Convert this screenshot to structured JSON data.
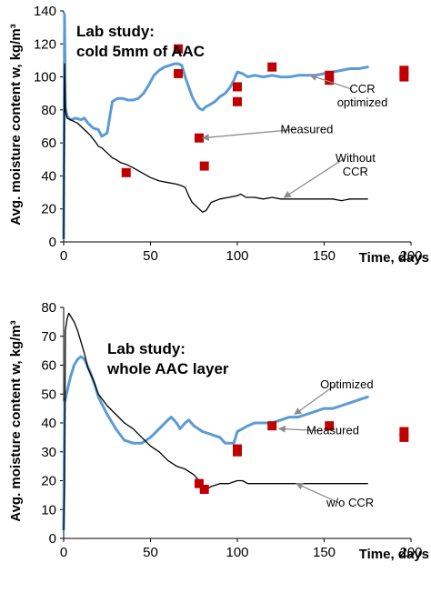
{
  "colors": {
    "optimized": "#5b9bd5",
    "without": "#000000",
    "measured": "#c00000",
    "arrow": "#8c8c8c"
  },
  "chart_data": [
    {
      "type": "line",
      "title_lines": [
        "Lab study:",
        "cold 5mm of AAC"
      ],
      "xlabel": "Time, days",
      "ylabel": "Avg. moisture content w, kg/m³",
      "xlim": [
        0,
        200
      ],
      "ylim": [
        0,
        140
      ],
      "xticks": [
        "0",
        "50",
        "100",
        "150",
        "200"
      ],
      "yticks": [
        "0",
        "20",
        "40",
        "60",
        "80",
        "100",
        "120",
        "140"
      ],
      "grid": false,
      "series": [
        {
          "name": "CCR optimized",
          "kind": "line",
          "x": [
            0,
            0.5,
            1,
            2,
            4,
            7,
            10,
            12,
            14,
            17,
            20,
            22,
            25,
            28,
            31,
            34,
            37,
            40,
            43,
            46,
            49,
            52,
            55,
            58,
            61,
            64,
            66,
            68,
            70,
            72,
            74,
            76,
            78,
            80,
            82,
            84,
            87,
            90,
            93,
            96,
            98,
            100,
            103,
            106,
            110,
            115,
            120,
            125,
            130,
            135,
            140,
            145,
            150,
            155,
            160,
            165,
            170,
            175
          ],
          "y": [
            2,
            138,
            82,
            76,
            74,
            75,
            74,
            75,
            72,
            69,
            68,
            64,
            66,
            85,
            87,
            87,
            86,
            86,
            87,
            90,
            95,
            101,
            104,
            106,
            107,
            108,
            108,
            107,
            100,
            94,
            88,
            84,
            81,
            80,
            82,
            83,
            85,
            88,
            90,
            94,
            98,
            103,
            102,
            100,
            101,
            100,
            101,
            100,
            100,
            101,
            101,
            101,
            102,
            103,
            104,
            105,
            105,
            106
          ]
        },
        {
          "name": "Without CCR",
          "kind": "line",
          "x": [
            0,
            0.5,
            1,
            2,
            4,
            6,
            8,
            10,
            12,
            15,
            18,
            20,
            22,
            24,
            26,
            28,
            30,
            33,
            36,
            40,
            45,
            50,
            55,
            60,
            65,
            68,
            70,
            72,
            74,
            76,
            78,
            80,
            82,
            85,
            90,
            95,
            100,
            102,
            105,
            110,
            115,
            120,
            125,
            130,
            135,
            140,
            145,
            150,
            155,
            160,
            165,
            170,
            175
          ],
          "y": [
            2,
            108,
            80,
            75,
            74,
            73,
            72,
            70,
            68,
            65,
            61,
            58,
            57,
            55,
            53,
            51,
            50,
            48,
            47,
            45,
            42,
            39,
            37,
            36,
            35,
            34,
            33,
            28,
            24,
            22,
            20,
            18,
            19,
            24,
            26,
            27,
            28,
            29,
            27,
            27,
            26,
            27,
            26,
            26,
            26,
            26,
            26,
            26,
            26,
            25,
            26,
            26,
            26
          ]
        },
        {
          "name": "Measured",
          "kind": "points",
          "x": [
            36,
            66,
            66,
            78,
            81,
            100,
            100,
            120,
            153,
            153,
            196,
            196
          ],
          "y": [
            42,
            117,
            102,
            63,
            46,
            94,
            85,
            106,
            101,
            98,
            104,
            100
          ]
        }
      ],
      "annotations": [
        {
          "lines": [
            "CCR",
            "optimized"
          ],
          "target": [
            142,
            101
          ],
          "text_at": [
            172,
            86
          ]
        },
        {
          "lines": [
            "Measured"
          ],
          "target": [
            80,
            63
          ],
          "text_at": [
            140,
            66
          ]
        },
        {
          "lines": [
            "Without",
            "CCR"
          ],
          "target": [
            127,
            27
          ],
          "text_at": [
            168,
            44
          ]
        }
      ]
    },
    {
      "type": "line",
      "title_lines": [
        "Lab study:",
        "whole AAC layer"
      ],
      "xlabel": "Time, days",
      "ylabel": "Avg. moisture content w, kg/m³",
      "xlim": [
        0,
        200
      ],
      "ylim": [
        0,
        80
      ],
      "xticks": [
        "0",
        "50",
        "100",
        "150",
        "200"
      ],
      "yticks": [
        "0",
        "10",
        "20",
        "30",
        "40",
        "50",
        "60",
        "70",
        "80"
      ],
      "grid": false,
      "series": [
        {
          "name": "Optimized",
          "kind": "line",
          "x": [
            0,
            0.5,
            1,
            2,
            4,
            6,
            8,
            10,
            12,
            15,
            18,
            20,
            25,
            30,
            35,
            40,
            45,
            50,
            55,
            60,
            62,
            65,
            67,
            70,
            72,
            75,
            80,
            85,
            90,
            93,
            96,
            98,
            100,
            103,
            106,
            110,
            115,
            120,
            125,
            130,
            135,
            140,
            145,
            150,
            155,
            160,
            165,
            170,
            175
          ],
          "y": [
            3,
            47,
            48,
            51,
            56,
            60,
            62,
            63,
            62,
            58,
            53,
            49,
            43,
            38,
            34,
            33,
            33,
            35,
            38,
            41,
            42,
            40,
            38,
            40,
            41,
            39,
            37,
            36,
            35,
            33,
            33,
            33,
            37,
            38,
            39,
            40,
            40,
            40,
            41,
            42,
            42,
            43,
            44,
            45,
            45,
            46,
            47,
            48,
            49
          ]
        },
        {
          "name": "w/o CCR",
          "kind": "line",
          "x": [
            0,
            0.5,
            1,
            2,
            3,
            4,
            6,
            8,
            10,
            12,
            14,
            17,
            20,
            25,
            30,
            35,
            40,
            45,
            50,
            55,
            60,
            65,
            70,
            75,
            78,
            80,
            82,
            85,
            90,
            95,
            100,
            103,
            106,
            110,
            115,
            120,
            125,
            130,
            135,
            140,
            145,
            150,
            155,
            160,
            165,
            170,
            175
          ],
          "y": [
            3,
            20,
            72,
            76,
            78,
            77,
            75,
            72,
            68,
            64,
            59,
            55,
            50,
            46,
            43,
            40,
            38,
            35,
            32,
            30,
            27,
            25,
            24,
            22,
            20,
            16,
            17,
            18,
            19,
            19,
            20,
            20,
            19,
            19,
            19,
            19,
            19,
            19,
            19,
            19,
            19,
            19,
            19,
            19,
            19,
            19,
            19
          ]
        },
        {
          "name": "Measured",
          "kind": "points",
          "x": [
            78,
            81,
            100,
            100,
            120,
            153,
            196,
            196
          ],
          "y": [
            19,
            17,
            31,
            30,
            39,
            39,
            37,
            35
          ]
        }
      ],
      "annotations": [
        {
          "lines": [
            "Optimized"
          ],
          "target": [
            133,
            43
          ],
          "text_at": [
            163,
            52
          ]
        },
        {
          "lines": [
            "Measured"
          ],
          "target": [
            124,
            38
          ],
          "text_at": [
            155,
            36
          ]
        },
        {
          "lines": [
            "w/o CCR"
          ],
          "target": [
            134,
            19
          ],
          "text_at": [
            165,
            11
          ]
        }
      ]
    }
  ]
}
